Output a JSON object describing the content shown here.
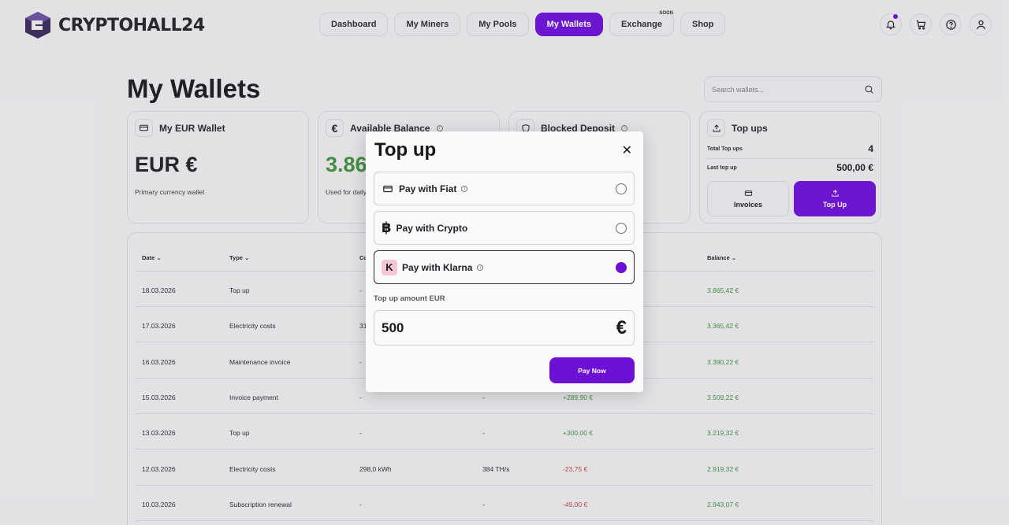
{
  "brand": {
    "name": "CRYPTOHALL24"
  },
  "nav": [
    {
      "label": "Dashboard",
      "active": false
    },
    {
      "label": "My Miners",
      "active": false
    },
    {
      "label": "My Pools",
      "active": false
    },
    {
      "label": "My Wallets",
      "active": true
    },
    {
      "label": "Exchange",
      "active": false,
      "badge": "SOON"
    },
    {
      "label": "Shop",
      "active": false
    }
  ],
  "header_icons": [
    "bell-icon",
    "cart-icon",
    "help-icon",
    "user-icon"
  ],
  "page": {
    "title": "My Wallets"
  },
  "search": {
    "placeholder": "Search wallets..."
  },
  "cards": {
    "eur_wallet": {
      "title": "My EUR Wallet",
      "value": "EUR €",
      "sub": "Primary currency wallet"
    },
    "available": {
      "title": "Available Balance",
      "value": "3.86",
      "sub": "Used for daily"
    },
    "blocked": {
      "title": "Blocked Deposit"
    },
    "topups": {
      "title": "Top ups",
      "total_label": "Total Top ups",
      "total_value": "4",
      "last_label": "Last top up",
      "last_value": "500,00 €",
      "invoices_label": "Invoices",
      "topup_label": "Top Up"
    }
  },
  "table": {
    "headers": {
      "date": "Date",
      "type": "Type",
      "consumption": "Co",
      "balance": "Balance"
    },
    "rows": [
      {
        "date": "18.03.2026",
        "type": "Top up",
        "c1": "-",
        "c2": "",
        "amount": "",
        "amount_sign": "pos",
        "balance": "3.865,42 €"
      },
      {
        "date": "17.03.2026",
        "type": "Electricity costs",
        "c1": "31",
        "c2": "",
        "amount": "",
        "amount_sign": "neg",
        "balance": "3.365,42 €"
      },
      {
        "date": "16.03.2026",
        "type": "Maintenance invoice",
        "c1": "-",
        "c2": "",
        "amount": "",
        "amount_sign": "neg",
        "balance": "3.390,22 €"
      },
      {
        "date": "15.03.2026",
        "type": "Invoice payment",
        "c1": "-",
        "c2": "-",
        "amount": "+289,90 €",
        "amount_sign": "pos",
        "balance": "3.509,22 €"
      },
      {
        "date": "13.03.2026",
        "type": "Top up",
        "c1": "-",
        "c2": "-",
        "amount": "+300,00 €",
        "amount_sign": "pos",
        "balance": "3.219,32 €"
      },
      {
        "date": "12.03.2026",
        "type": "Electricity costs",
        "c1": "298,0 kWh",
        "c2": "384 TH/s",
        "amount": "-23,75 €",
        "amount_sign": "neg",
        "balance": "2.919,32 €"
      },
      {
        "date": "10.03.2026",
        "type": "Subscription renewal",
        "c1": "-",
        "c2": "-",
        "amount": "-49,00 €",
        "amount_sign": "neg",
        "balance": "2.943,07 €"
      }
    ]
  },
  "modal": {
    "title": "Top up",
    "options": [
      {
        "label": "Pay with Fiat",
        "selected": false,
        "info": true
      },
      {
        "label": "Pay with Crypto",
        "selected": false,
        "info": false
      },
      {
        "label": "Pay with Klarna",
        "selected": true,
        "info": true
      }
    ],
    "amount_label": "Top up amount EUR",
    "amount_value": "500",
    "currency_symbol": "€",
    "pay_label": "Pay Now"
  },
  "colors": {
    "accent": "#6c10d6",
    "positive": "#3f8f3d",
    "negative": "#c4433d"
  }
}
